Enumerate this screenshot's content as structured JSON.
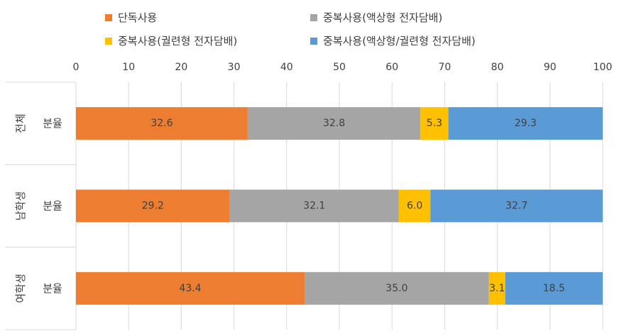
{
  "chart_data": {
    "type": "bar",
    "orientation": "horizontal",
    "stacked": true,
    "title": "",
    "xlabel": "",
    "ylabel": "",
    "xlim": [
      0,
      100
    ],
    "ticks": [
      0,
      10,
      20,
      30,
      40,
      50,
      60,
      70,
      80,
      90,
      100
    ],
    "grid": true,
    "legend_position": "top",
    "groups": [
      "전체",
      "남학생",
      "여학생"
    ],
    "categories": [
      "분율",
      "분율",
      "분율"
    ],
    "series": [
      {
        "name": "단독사용",
        "color": "#ED7D31",
        "values": [
          32.6,
          29.2,
          43.4
        ],
        "labels": [
          "32.6",
          "29.2",
          "43.4"
        ]
      },
      {
        "name": "중복사용(액상형 전자담배)",
        "color": "#A5A5A5",
        "values": [
          32.8,
          32.1,
          35.0
        ],
        "labels": [
          "32.8",
          "32.1",
          "35.0"
        ]
      },
      {
        "name": "중복사용(궐련형 전자담배)",
        "color": "#FFC000",
        "values": [
          5.3,
          6.0,
          3.1
        ],
        "labels": [
          "5.3",
          "6.0",
          "3.1"
        ]
      },
      {
        "name": "중복사용(액상형/궐련형 전자담배)",
        "color": "#5B9BD5",
        "values": [
          29.3,
          32.7,
          18.5
        ],
        "labels": [
          "29.3",
          "32.7",
          "18.5"
        ]
      }
    ]
  }
}
